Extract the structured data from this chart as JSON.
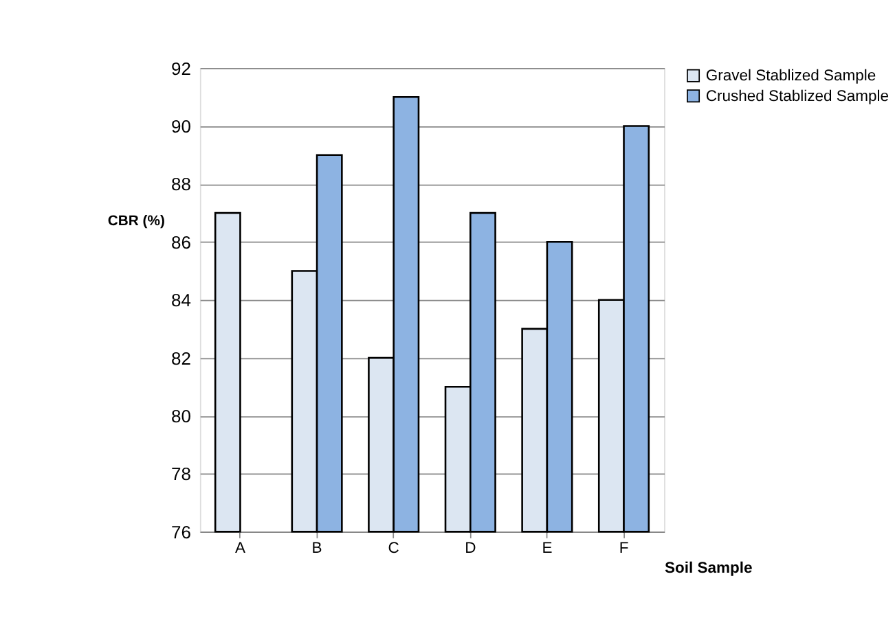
{
  "chart_data": {
    "type": "bar",
    "xlabel": "Soil Sample",
    "ylabel": "CBR (%)",
    "categories": [
      "A",
      "B",
      "C",
      "D",
      "E",
      "F"
    ],
    "series": [
      {
        "name": "Gravel Stablized Sample",
        "color": "#dce6f2",
        "values": [
          87,
          85,
          82,
          81,
          83,
          84
        ]
      },
      {
        "name": "Crushed Stablized Sample",
        "color": "#8db3e2",
        "values": [
          null,
          89,
          91,
          87,
          86,
          90
        ]
      }
    ],
    "ylim": [
      76,
      92
    ],
    "yticks": [
      76,
      78,
      80,
      82,
      84,
      86,
      88,
      90,
      92
    ],
    "grid": "y",
    "legend": "right"
  }
}
